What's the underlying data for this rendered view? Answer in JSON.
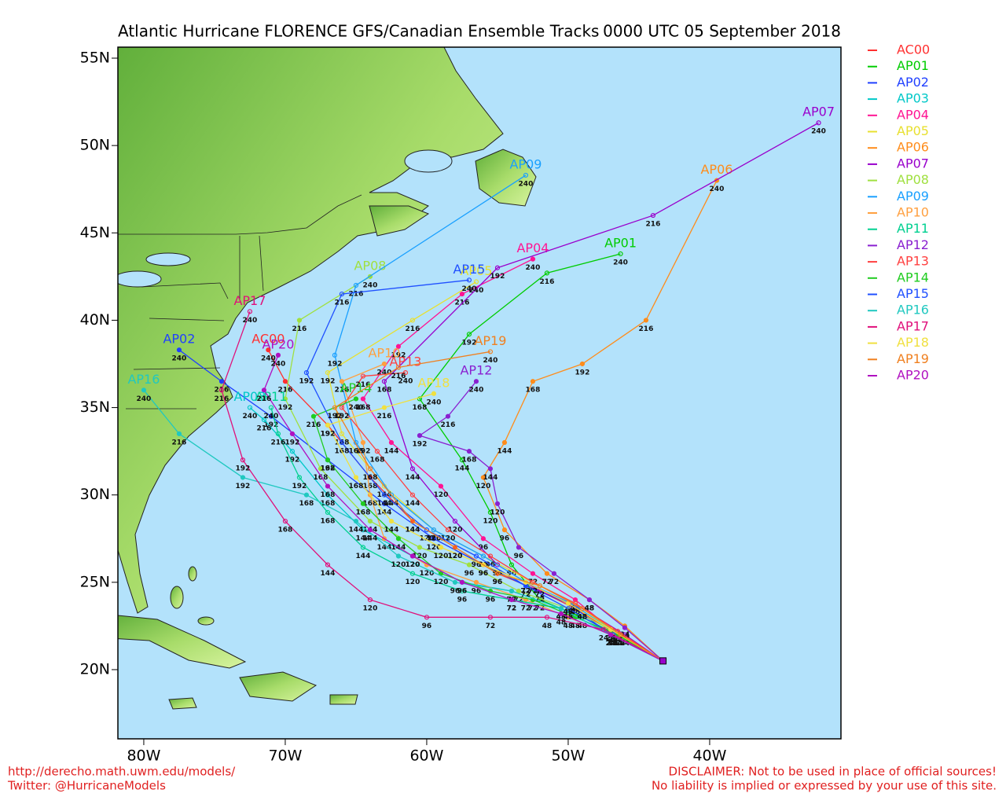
{
  "map": {
    "type": "track_map",
    "title": "Atlantic Hurricane FLORENCE GFS/Canadian Ensemble Tracks",
    "time": "0000 UTC 05 September 2018",
    "xlim": [
      -81.83,
      -30.72
    ],
    "ylim": [
      16.04,
      55.63
    ],
    "xticks": [
      {
        "value": -80,
        "label": "80W"
      },
      {
        "value": -70,
        "label": "70W"
      },
      {
        "value": -60,
        "label": "60W"
      },
      {
        "value": -50,
        "label": "50W"
      },
      {
        "value": -40,
        "label": "40W"
      }
    ],
    "yticks": [
      {
        "value": 20,
        "label": "20N"
      },
      {
        "value": 25,
        "label": "25N"
      },
      {
        "value": 30,
        "label": "30N"
      },
      {
        "value": 35,
        "label": "35N"
      },
      {
        "value": 40,
        "label": "40N"
      },
      {
        "value": 45,
        "label": "45N"
      },
      {
        "value": 50,
        "label": "50N"
      },
      {
        "value": 55,
        "label": "55N"
      }
    ],
    "hours": [
      0,
      24,
      48,
      72,
      96,
      120,
      144,
      168,
      192,
      216,
      240
    ],
    "tracks": [
      {
        "name": "AC00",
        "color": "#ff3030",
        "lon": [
          -43.3,
          -46.5,
          -49.5,
          -52,
          -55,
          -58,
          -61,
          -64,
          -67,
          -70,
          -71.2
        ],
        "lat": [
          20.5,
          22,
          23.5,
          24.5,
          25.5,
          27,
          28.5,
          31,
          34,
          36.5,
          38.3
        ]
      },
      {
        "name": "AP01",
        "color": "#00cc00",
        "lon": [
          -43.3,
          -46.8,
          -49,
          -52,
          -54,
          -55.5,
          -57.5,
          -60.5,
          -57,
          -51.5,
          -46.3
        ],
        "lat": [
          20.5,
          22.1,
          23,
          24,
          26,
          29,
          32,
          35.5,
          39.2,
          42.7,
          43.8
        ]
      },
      {
        "name": "AP02",
        "color": "#2040ff",
        "lon": [
          -43.3,
          -47,
          -50,
          -53,
          -56,
          -59.5,
          -63,
          -67,
          -71,
          -74.5,
          -77.5
        ],
        "lat": [
          20.5,
          22,
          23.8,
          24.8,
          26,
          27.5,
          29.5,
          32,
          34.5,
          36.5,
          38.3
        ]
      },
      {
        "name": "AP03",
        "color": "#00c8c8",
        "lon": [
          -43.3,
          -47,
          -50.5,
          -54,
          -57.5,
          -61,
          -64.5,
          -67,
          -69.5,
          -71.5,
          -72.5
        ],
        "lat": [
          20.5,
          22,
          23.5,
          24.5,
          25,
          26.5,
          28,
          30,
          32.5,
          34.3,
          35
        ]
      },
      {
        "name": "AP04",
        "color": "#ff1493",
        "lon": [
          -43.3,
          -46.5,
          -49.5,
          -52.5,
          -56,
          -59,
          -62.5,
          -64.5,
          -62,
          -57.5,
          -52.5
        ],
        "lat": [
          20.5,
          22,
          24,
          25.5,
          27.5,
          30.5,
          33,
          35.5,
          38.5,
          41.5,
          43.5
        ]
      },
      {
        "name": "AP05",
        "color": "#e8e030",
        "lon": [
          -43.3,
          -46.8,
          -49.5,
          -52.5,
          -56,
          -59.5,
          -63,
          -66,
          -67,
          -61,
          -56.5
        ],
        "lat": [
          20.5,
          22.2,
          23.8,
          25,
          26.5,
          28,
          30.5,
          33.5,
          37,
          40,
          42.2
        ]
      },
      {
        "name": "AP06",
        "color": "#ff8c1a",
        "lon": [
          -43.3,
          -46,
          -48.5,
          -51.5,
          -54.5,
          -56,
          -54.5,
          -52.5,
          -49,
          -44.5,
          -39.5
        ],
        "lat": [
          20.5,
          22.5,
          24,
          25.5,
          28,
          31,
          33,
          36.5,
          37.5,
          40,
          48
        ]
      },
      {
        "name": "AP07",
        "color": "#9900cc",
        "lon": [
          -43.3,
          -46,
          -49,
          -52,
          -55,
          -58,
          -61,
          -63,
          -55,
          -44,
          -32.3
        ],
        "lat": [
          20.5,
          22,
          23.5,
          24.5,
          26,
          28.5,
          31.5,
          36.5,
          43,
          46,
          51.3
        ]
      },
      {
        "name": "AP08",
        "color": "#a0e040",
        "lon": [
          -43.3,
          -47,
          -50,
          -53.5,
          -57,
          -60.5,
          -64,
          -67.5,
          -70,
          -69,
          -64
        ],
        "lat": [
          20.5,
          22.3,
          23.5,
          24.5,
          26,
          27,
          28.5,
          31.5,
          35.5,
          40,
          42.5
        ]
      },
      {
        "name": "AP09",
        "color": "#1aa0ff",
        "lon": [
          -43.3,
          -46.8,
          -49.8,
          -53,
          -56,
          -59.5,
          -62.5,
          -65,
          -66.5,
          -65,
          -53
        ],
        "lat": [
          20.5,
          22.2,
          23.8,
          25,
          26.5,
          28,
          30,
          33,
          38,
          42,
          48.3
        ]
      },
      {
        "name": "AP10",
        "color": "#ffa040",
        "lon": [
          -43.3,
          -47,
          -50,
          -53,
          -56.5,
          -60,
          -63,
          -64,
          -64.5,
          -66,
          -63
        ],
        "lat": [
          20.5,
          22,
          23,
          24,
          25,
          26,
          27.5,
          30,
          33,
          36.5,
          37.5
        ]
      },
      {
        "name": "AP11",
        "color": "#00d090",
        "lon": [
          -43.3,
          -47,
          -50.5,
          -54,
          -57.5,
          -61,
          -64.5,
          -67,
          -69,
          -70.5,
          -71
        ],
        "lat": [
          20.5,
          22,
          23.5,
          24,
          24.5,
          25.5,
          27,
          29,
          31,
          33.5,
          35
        ]
      },
      {
        "name": "AP12",
        "color": "#8a20d0",
        "lon": [
          -43.3,
          -46,
          -48.5,
          -51,
          -53.5,
          -55,
          -55.5,
          -57,
          -60.5,
          -58.5,
          -56.5
        ],
        "lat": [
          20.5,
          22.4,
          24,
          25.5,
          27,
          29.5,
          31.5,
          32.5,
          33.4,
          34.5,
          36.5
        ]
      },
      {
        "name": "AP13",
        "color": "#ff4040",
        "lon": [
          -43.3,
          -46.5,
          -49.5,
          -52.5,
          -55.5,
          -58.5,
          -61,
          -63.5,
          -66,
          -64.5,
          -61.5
        ],
        "lat": [
          20.5,
          22.2,
          23.8,
          25,
          26.5,
          28,
          30,
          32.5,
          35,
          36.8,
          37
        ]
      },
      {
        "name": "AP14",
        "color": "#20cc20",
        "lon": [
          -43.3,
          -46.5,
          -49.5,
          -52.5,
          -55.5,
          -59,
          -62,
          -64.5,
          -67,
          -68,
          -65
        ],
        "lat": [
          20.5,
          22,
          23,
          24,
          24.5,
          25.5,
          27.5,
          29.5,
          32,
          34.5,
          35.5
        ]
      },
      {
        "name": "AP15",
        "color": "#2050ff",
        "lon": [
          -43.3,
          -46.8,
          -50,
          -53,
          -56.5,
          -60,
          -63,
          -66,
          -68.5,
          -66,
          -57
        ],
        "lat": [
          20.5,
          22,
          23.5,
          24.8,
          26.5,
          28,
          30,
          33,
          37,
          41.5,
          42.3
        ]
      },
      {
        "name": "AP16",
        "color": "#20c8c0",
        "lon": [
          -43.3,
          -47,
          -50.5,
          -54,
          -58,
          -62,
          -65,
          -68.5,
          -73,
          -77.5,
          -80
        ],
        "lat": [
          20.5,
          22,
          23.5,
          24.5,
          25,
          26.5,
          28.5,
          30,
          31,
          33.5,
          36
        ]
      },
      {
        "name": "AP17",
        "color": "#e0107a",
        "lon": [
          -43.3,
          -47.5,
          -51.5,
          -55.5,
          -60,
          -64,
          -67,
          -70,
          -73,
          -74.5,
          -72.5
        ],
        "lat": [
          20.5,
          22.3,
          23,
          23,
          23,
          24,
          26,
          28.5,
          32,
          36,
          40.5
        ]
      },
      {
        "name": "AP18",
        "color": "#f0e040",
        "lon": [
          -43.3,
          -47,
          -50,
          -53,
          -56,
          -59,
          -62.5,
          -65,
          -67,
          -63,
          -59.5
        ],
        "lat": [
          20.5,
          22.3,
          23.8,
          25,
          26,
          27,
          28.5,
          31,
          34,
          35,
          35.8
        ]
      },
      {
        "name": "AP19",
        "color": "#f08020",
        "lon": [
          -43.3,
          -46.3,
          -49,
          -52,
          -55,
          -58,
          -61,
          -64,
          -66.5,
          -62,
          -55.5
        ],
        "lat": [
          20.5,
          22,
          23.5,
          24.8,
          25.5,
          27,
          28.5,
          31.5,
          35,
          37.3,
          38.2
        ]
      },
      {
        "name": "AP20",
        "color": "#b010c0",
        "lon": [
          -43.3,
          -47,
          -50.5,
          -54,
          -57.5,
          -61,
          -64,
          -67,
          -69.5,
          -71.5,
          -70.5
        ],
        "lat": [
          20.5,
          22,
          23.2,
          24,
          25,
          26.5,
          28,
          30.5,
          33.5,
          36,
          38
        ]
      }
    ],
    "footer_left": [
      "http://derecho.math.uwm.edu/models/",
      "Twitter: @HurricaneModels"
    ],
    "footer_right": [
      "DISCLAIMER: Not to be used in place of official sources!",
      "No liability is implied or expressed by your use of this site."
    ]
  }
}
